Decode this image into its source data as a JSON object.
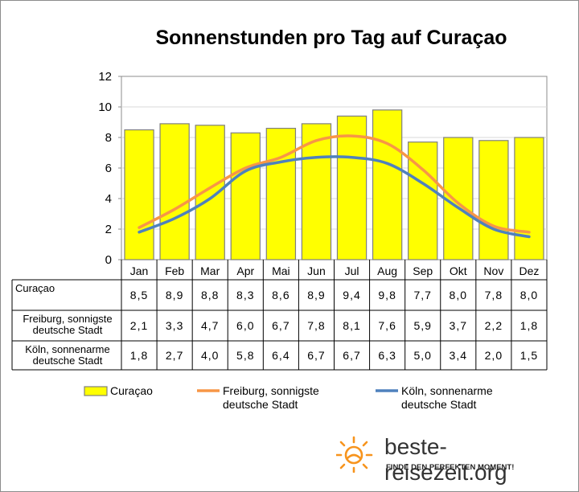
{
  "chart_data": {
    "type": "bar",
    "title": "Sonnenstunden pro Tag auf Curaçao",
    "categories": [
      "Jan",
      "Feb",
      "Mar",
      "Apr",
      "Mai",
      "Jun",
      "Jul",
      "Aug",
      "Sep",
      "Okt",
      "Nov",
      "Dez"
    ],
    "ylim": [
      0,
      12
    ],
    "yticks": [
      "0",
      "2",
      "4",
      "6",
      "8",
      "10",
      "12"
    ],
    "grid": true,
    "legend_position": "bottom",
    "series": [
      {
        "name": "Curaçao",
        "type": "bar",
        "color": "#ffff00",
        "values": [
          8.5,
          8.9,
          8.8,
          8.3,
          8.6,
          8.9,
          9.4,
          9.8,
          7.7,
          8.0,
          7.8,
          8.0
        ],
        "labels": [
          "8,5",
          "8,9",
          "8,8",
          "8,3",
          "8,6",
          "8,9",
          "9,4",
          "9,8",
          "7,7",
          "8,0",
          "7,8",
          "8,0"
        ],
        "row_label_lines": [
          "Curaçao"
        ],
        "legend_lines": [
          "Curaçao"
        ]
      },
      {
        "name": "Freiburg, sonnigste deutsche Stadt",
        "type": "line",
        "color": "#f79646",
        "values": [
          2.1,
          3.3,
          4.7,
          6.0,
          6.7,
          7.8,
          8.1,
          7.6,
          5.9,
          3.7,
          2.2,
          1.8
        ],
        "labels": [
          "2,1",
          "3,3",
          "4,7",
          "6,0",
          "6,7",
          "7,8",
          "8,1",
          "7,6",
          "5,9",
          "3,7",
          "2,2",
          "1,8"
        ],
        "row_label_lines": [
          "Freiburg, sonnigste",
          "deutsche Stadt"
        ],
        "legend_lines": [
          "Freiburg, sonnigste",
          "deutsche Stadt"
        ]
      },
      {
        "name": "Köln, sonnenarme deutsche Stadt",
        "type": "line",
        "color": "#4f81bd",
        "values": [
          1.8,
          2.7,
          4.0,
          5.8,
          6.4,
          6.7,
          6.7,
          6.3,
          5.0,
          3.4,
          2.0,
          1.5
        ],
        "labels": [
          "1,8",
          "2,7",
          "4,0",
          "5,8",
          "6,4",
          "6,7",
          "6,7",
          "6,3",
          "5,0",
          "3,4",
          "2,0",
          "1,5"
        ],
        "row_label_lines": [
          "Köln, sonnenarme",
          "deutsche Stadt"
        ],
        "legend_lines": [
          "Köln, sonnenarme",
          "deutsche Stadt"
        ]
      }
    ]
  },
  "brand": {
    "name": "beste-reisezeit.org",
    "tagline": "FINDE DEN PERFEKTEN MOMENT!",
    "logo_icon": "sun-icon",
    "logo_color": "#f7941d"
  }
}
